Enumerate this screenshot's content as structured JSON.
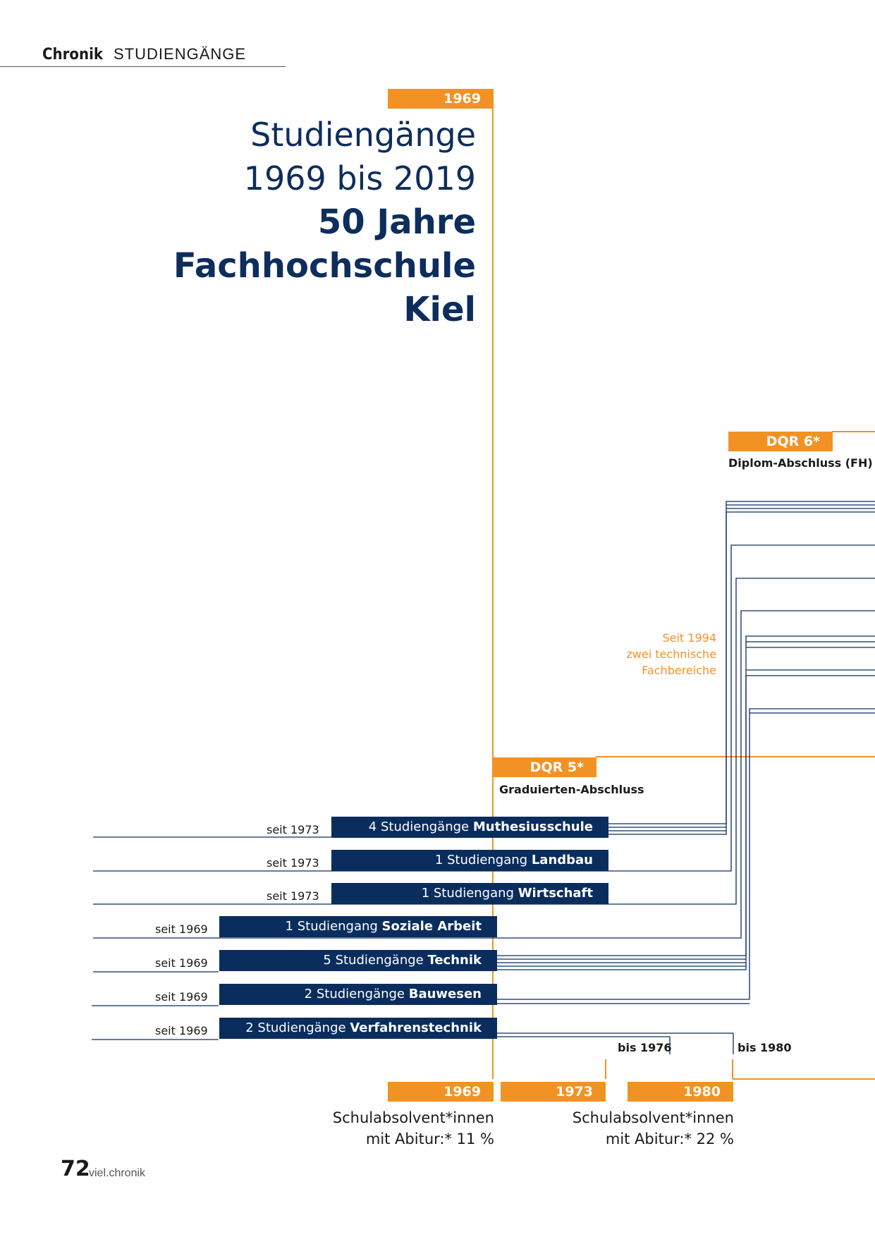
{
  "header": {
    "section": "Chronik",
    "topic": "STUDIENGÄNGE"
  },
  "title": {
    "line1": "Studiengänge",
    "line2": "1969 bis 2019",
    "line3": "50 Jahre",
    "line4": "Fachhochschule",
    "line5": "Kiel"
  },
  "years": {
    "top": "1969",
    "bottom_1": "1969",
    "bottom_2": "1973",
    "bottom_3": "1980"
  },
  "dqr6": {
    "label": "DQR 6*",
    "sub": "Diplom-Abschluss (FH)"
  },
  "dqr5": {
    "label": "DQR 5*",
    "sub": "Graduierten-Abschluss"
  },
  "note_1994": {
    "line1": "Seit 1994",
    "line2": "zwei technische",
    "line3": "Fachbereiche"
  },
  "programs": [
    {
      "since": "seit 1973",
      "prefix": "4 Studiengänge ",
      "name": "Muthesiusschule"
    },
    {
      "since": "seit 1973",
      "prefix": "1 Studiengang ",
      "name": "Landbau"
    },
    {
      "since": "seit 1973",
      "prefix": "1 Studiengang ",
      "name": "Wirtschaft"
    },
    {
      "since": "seit 1969",
      "prefix": "1 Studiengang ",
      "name": "Soziale Arbeit"
    },
    {
      "since": "seit 1969",
      "prefix": "5 Studiengänge ",
      "name": "Technik"
    },
    {
      "since": "seit 1969",
      "prefix": "2 Studiengänge ",
      "name": "Bauwesen"
    },
    {
      "since": "seit 1969",
      "prefix": "2 Studiengänge ",
      "name": "Verfahrenstechnik"
    }
  ],
  "end_labels": {
    "bis_1976": "bis 1976",
    "bis_1980": "bis 1980"
  },
  "abitur_1969": {
    "line1": "Schulabsolvent*innen",
    "line2": "mit Abitur:* 11 %"
  },
  "abitur_1980": {
    "line1": "Schulabsolvent*innen",
    "line2": "mit Abitur:* 22 %"
  },
  "footer": {
    "page": "72",
    "name": "viel.chronik"
  },
  "colors": {
    "navy": "#0a2d5e",
    "orange": "#f39224"
  }
}
